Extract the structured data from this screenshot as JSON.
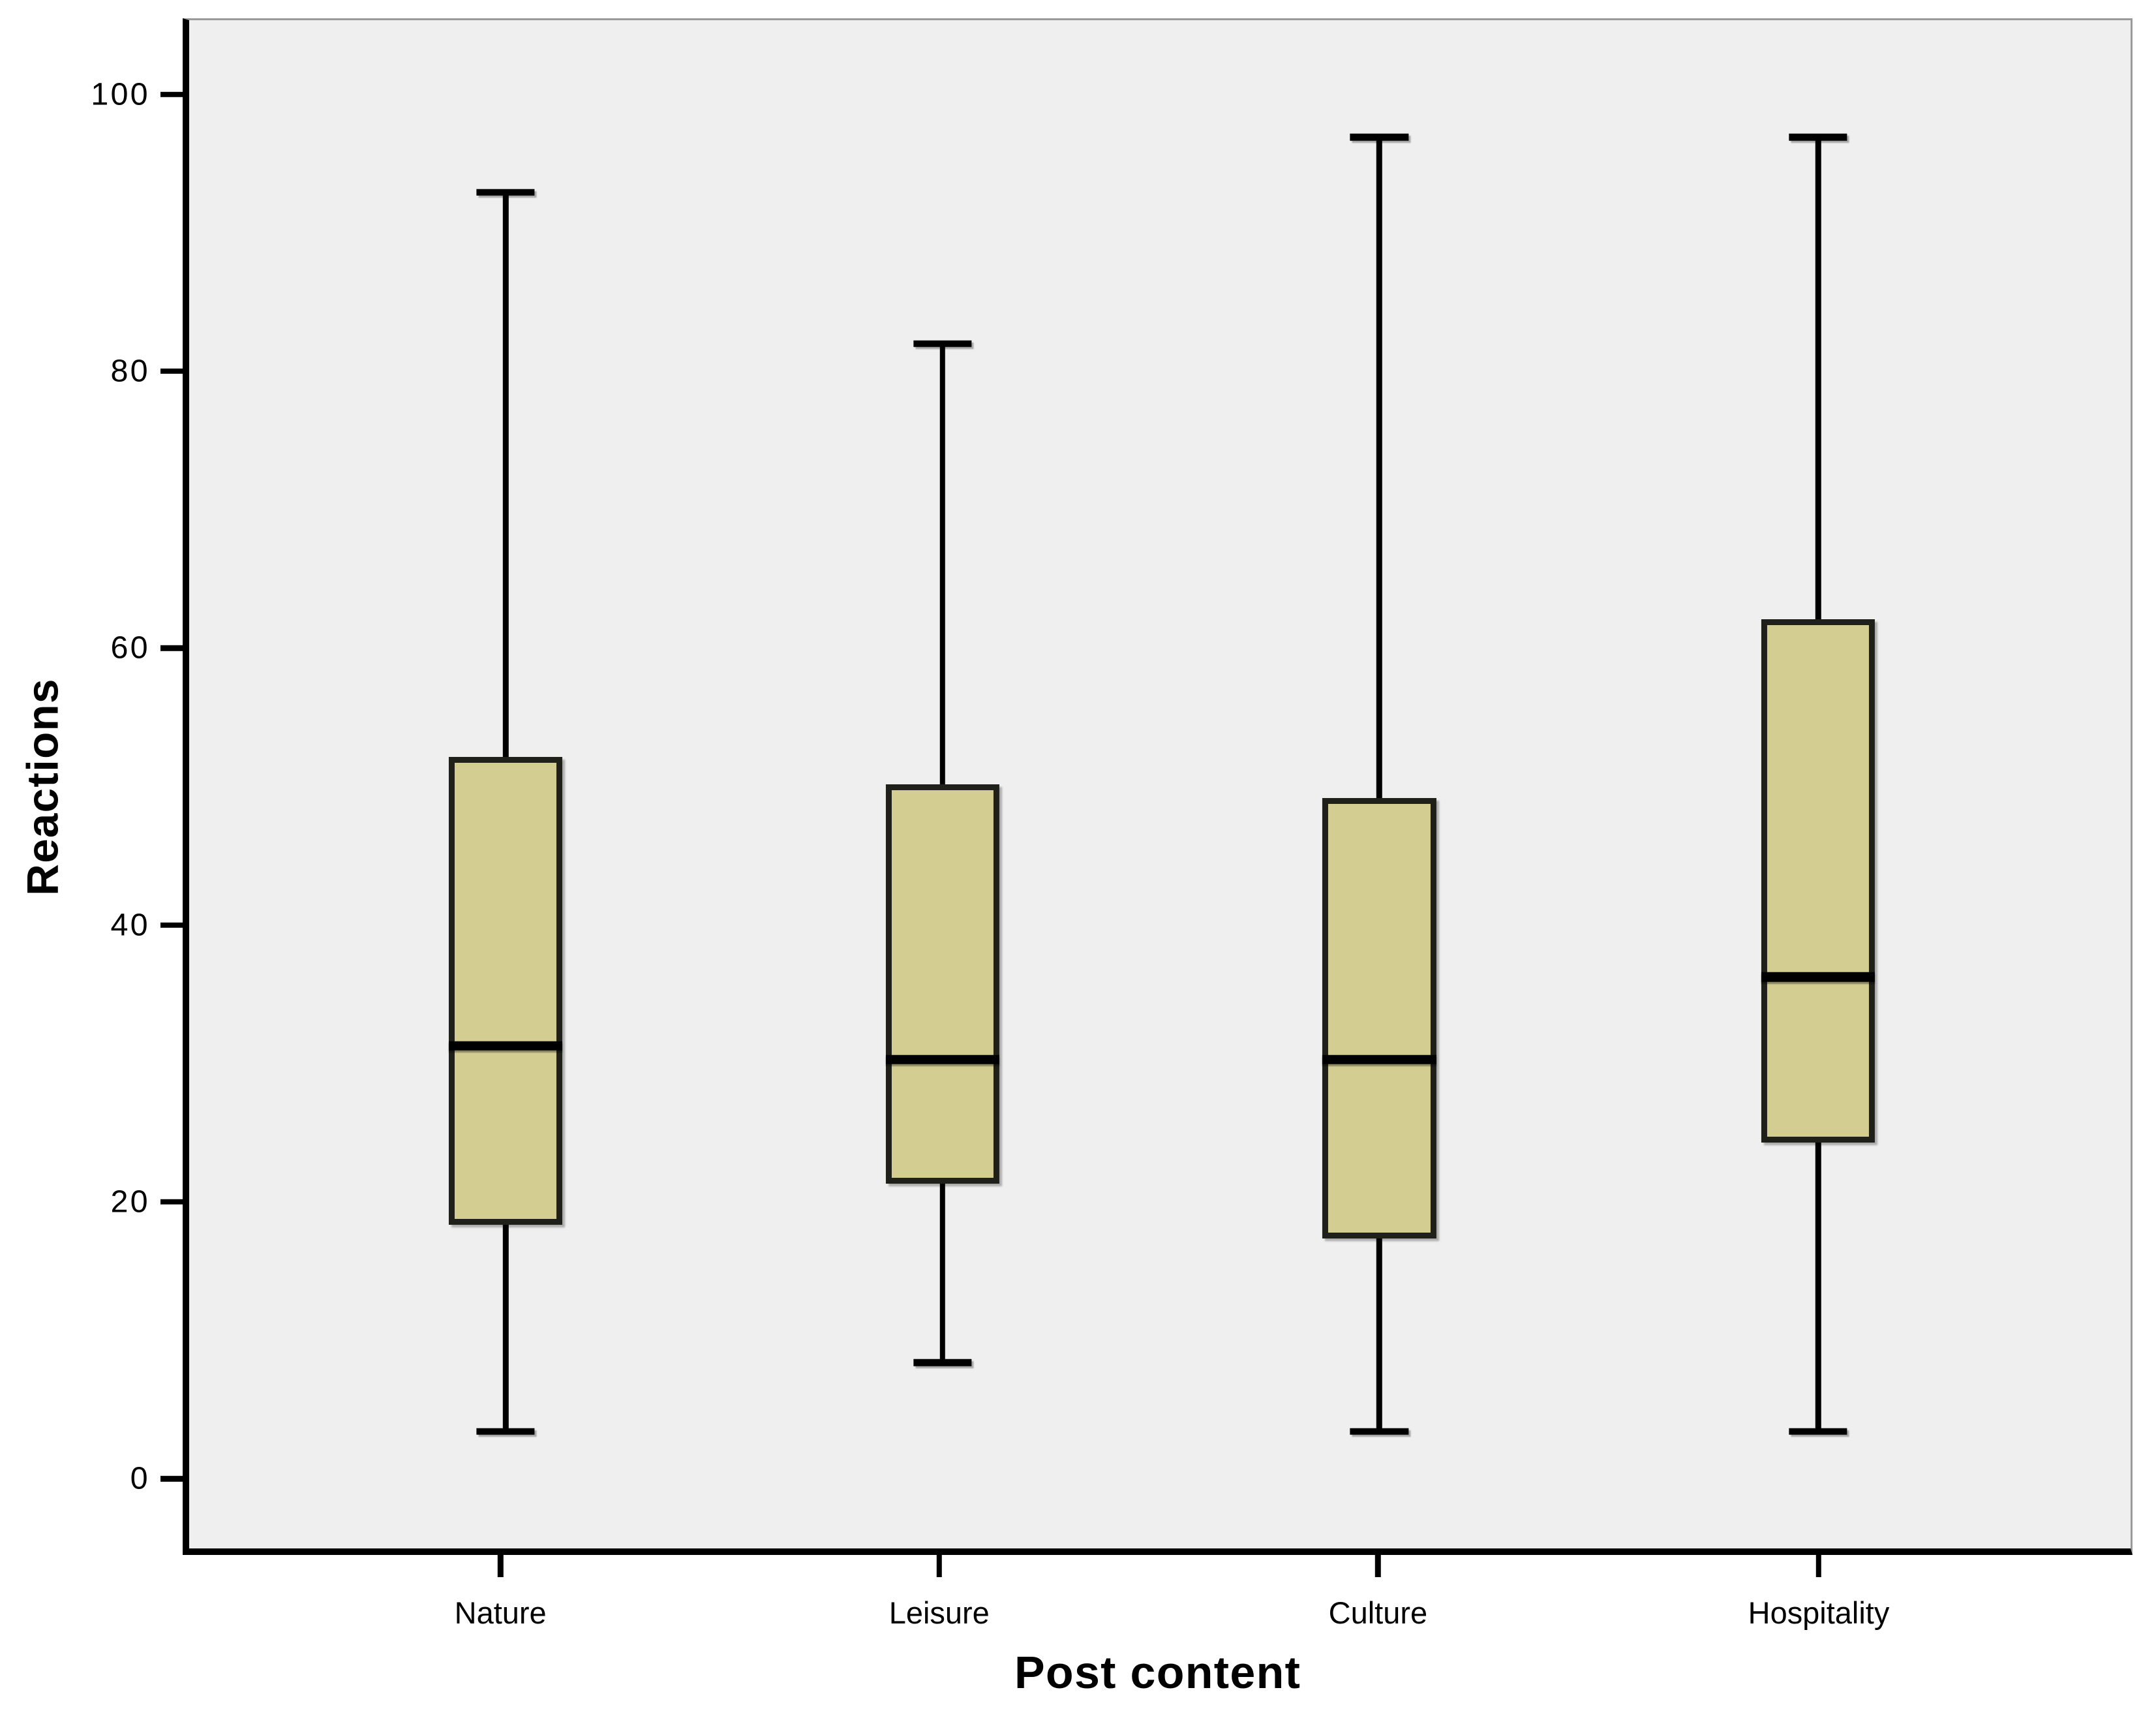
{
  "chart_data": {
    "type": "box",
    "title": "",
    "xlabel": "Post content",
    "ylabel": "Reactions",
    "categories": [
      "Nature",
      "Leisure",
      "Culture",
      "Hospitality"
    ],
    "series": [
      {
        "category": "Nature",
        "min": 3,
        "q1": 18,
        "median": 31,
        "q3": 52,
        "max": 93
      },
      {
        "category": "Leisure",
        "min": 8,
        "q1": 21,
        "median": 30,
        "q3": 50,
        "max": 82
      },
      {
        "category": "Culture",
        "min": 3,
        "q1": 17,
        "median": 30,
        "q3": 49,
        "max": 97
      },
      {
        "category": "Hospitality",
        "min": 3,
        "q1": 24,
        "median": 36,
        "q3": 62,
        "max": 97
      }
    ],
    "y_ticks": [
      0,
      20,
      40,
      60,
      80,
      100
    ],
    "ylim": [
      -5.5,
      105.5
    ],
    "category_centers_pct": [
      16.3,
      38.8,
      61.3,
      83.9
    ],
    "grid": false,
    "legend": "none",
    "colors": {
      "box_fill": "#d3cd92",
      "box_border": "#20201a",
      "whisker": "#000000",
      "plot_background": "#efefef",
      "page_background": "#ffffff",
      "axis_line": "#000000",
      "frame_line": "#9a9a9a"
    }
  }
}
